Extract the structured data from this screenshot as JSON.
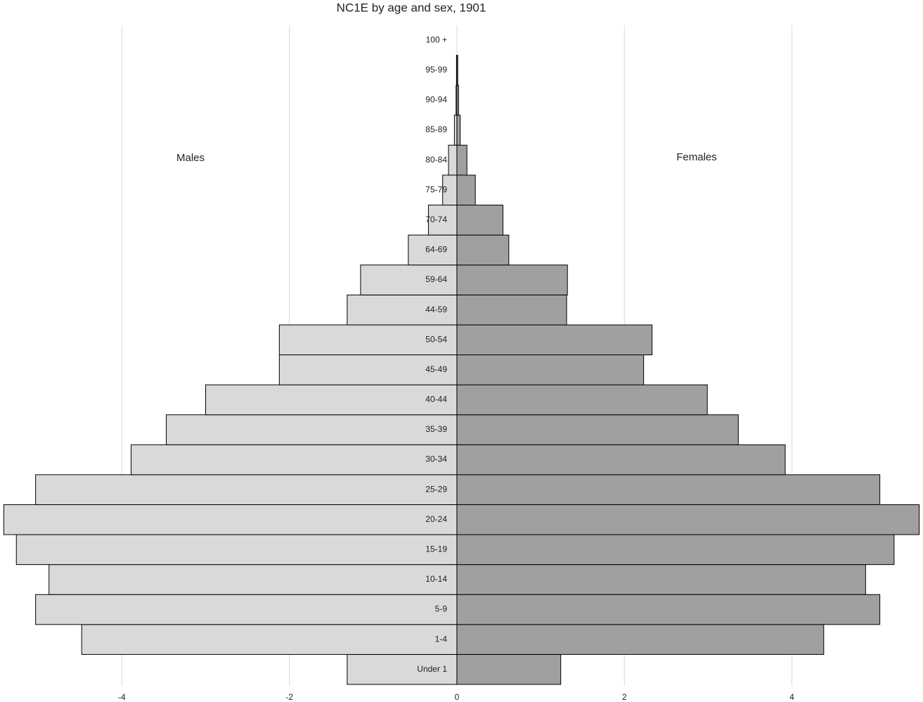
{
  "chart_data": {
    "type": "pyramid",
    "title": "NC1E by age and sex, 1901",
    "categories": [
      "Under 1",
      "1-4",
      "5-9",
      "10-14",
      "15-19",
      "20-24",
      "25-29",
      "30-34",
      "35-39",
      "40-44",
      "45-49",
      "50-54",
      "44-59",
      "59-64",
      "64-69",
      "70-74",
      "75-79",
      "80-84",
      "85-89",
      "90-94",
      "95-99",
      "100 +"
    ],
    "series": [
      {
        "name": "Males",
        "color": "#d9d9d9",
        "values": [
          -1.31,
          -4.48,
          -5.03,
          -4.87,
          -5.26,
          -5.41,
          -5.03,
          -3.89,
          -3.47,
          -3.0,
          -2.12,
          -2.12,
          -1.31,
          -1.15,
          -0.58,
          -0.34,
          -0.17,
          -0.1,
          -0.03,
          -0.01,
          -0.005,
          0
        ]
      },
      {
        "name": "Females",
        "color": "#a0a0a0",
        "values": [
          1.24,
          4.38,
          5.05,
          4.88,
          5.22,
          5.52,
          5.05,
          3.92,
          3.36,
          2.99,
          2.23,
          2.33,
          1.31,
          1.32,
          0.62,
          0.55,
          0.22,
          0.12,
          0.04,
          0.02,
          0.01,
          0
        ]
      }
    ],
    "xlim": [
      -5.43,
      5.54
    ],
    "xticks": [
      -4,
      -2,
      0,
      2,
      4
    ],
    "grid": true
  }
}
